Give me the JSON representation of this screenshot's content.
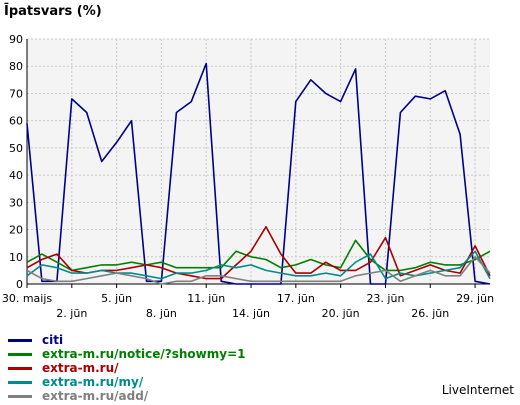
{
  "chart_title": "Īpatsvars (%)",
  "brand": "LiveInternet",
  "colors": {
    "grid_bg": "#f4f4f4",
    "grid_line": "#c8c8c8",
    "axis": "#000000"
  },
  "chart_data": {
    "type": "line",
    "title": "Īpatsvars (%)",
    "xlabel": "",
    "ylabel": "",
    "ylim": [
      0,
      90
    ],
    "yticks": [
      0,
      10,
      20,
      30,
      40,
      50,
      60,
      70,
      80,
      90
    ],
    "grid": true,
    "legend_position": "bottom-left",
    "x": [
      "30. maijs",
      "31. maijs",
      "1. jūn",
      "2. jūn",
      "3. jūn",
      "4. jūn",
      "5. jūn",
      "6. jūn",
      "7. jūn",
      "8. jūn",
      "9. jūn",
      "10. jūn",
      "11. jūn",
      "12. jūn",
      "13. jūn",
      "14. jūn",
      "15. jūn",
      "16. jūn",
      "17. jūn",
      "18. jūn",
      "19. jūn",
      "20. jūn",
      "21. jūn",
      "22. jūn",
      "23. jūn",
      "24. jūn",
      "25. jūn",
      "26. jūn",
      "27. jūn",
      "28. jūn",
      "29. jūn",
      "30. jūn"
    ],
    "x_tick_labels": [
      {
        "index": 0,
        "label": "30. maijs",
        "row": 0
      },
      {
        "index": 3,
        "label": "2. jūn",
        "row": 1
      },
      {
        "index": 6,
        "label": "5. jūn",
        "row": 0
      },
      {
        "index": 9,
        "label": "8. jūn",
        "row": 1
      },
      {
        "index": 12,
        "label": "11. jūn",
        "row": 0
      },
      {
        "index": 15,
        "label": "14. jūn",
        "row": 1
      },
      {
        "index": 18,
        "label": "17. jūn",
        "row": 0
      },
      {
        "index": 21,
        "label": "20. jūn",
        "row": 1
      },
      {
        "index": 24,
        "label": "23. jūn",
        "row": 0
      },
      {
        "index": 27,
        "label": "26. jūn",
        "row": 1
      },
      {
        "index": 30,
        "label": "29. jūn",
        "row": 0
      }
    ],
    "series": [
      {
        "name": "citi",
        "color": "#00008b",
        "values": [
          59,
          1,
          1,
          68,
          63,
          45,
          52,
          60,
          1,
          1,
          63,
          67,
          81,
          1,
          0,
          0,
          0,
          0,
          67,
          75,
          70,
          67,
          79,
          0,
          0,
          63,
          69,
          68,
          71,
          55,
          1,
          0
        ]
      },
      {
        "name": "extra-m.ru/notice/?showmy=1",
        "color": "#008000",
        "values": [
          8,
          11,
          8,
          5,
          6,
          7,
          7,
          8,
          7,
          8,
          6,
          6,
          6,
          6,
          12,
          10,
          9,
          6,
          7,
          9,
          7,
          6,
          16,
          9,
          5,
          5,
          6,
          8,
          7,
          7,
          9,
          12
        ]
      },
      {
        "name": "extra-m.ru/",
        "color": "#aa0000",
        "values": [
          6,
          9,
          11,
          5,
          4,
          5,
          5,
          6,
          7,
          6,
          4,
          3,
          2,
          2,
          7,
          12,
          21,
          11,
          4,
          4,
          8,
          5,
          5,
          8,
          17,
          3,
          5,
          7,
          5,
          4,
          14,
          3
        ]
      },
      {
        "name": "extra-m.ru/my/",
        "color": "#008b8b",
        "values": [
          3,
          7,
          6,
          4,
          4,
          5,
          4,
          4,
          3,
          2,
          4,
          4,
          5,
          7,
          6,
          7,
          5,
          4,
          3,
          3,
          4,
          3,
          8,
          11,
          2,
          4,
          3,
          4,
          5,
          6,
          12,
          2
        ]
      },
      {
        "name": "extra-m.ru/add/",
        "color": "#808080",
        "values": [
          5,
          2,
          1,
          1,
          2,
          3,
          4,
          3,
          2,
          0,
          1,
          1,
          3,
          3,
          2,
          1,
          1,
          1,
          1,
          1,
          1,
          1,
          3,
          4,
          5,
          1,
          3,
          5,
          3,
          3,
          10,
          4
        ]
      }
    ]
  }
}
